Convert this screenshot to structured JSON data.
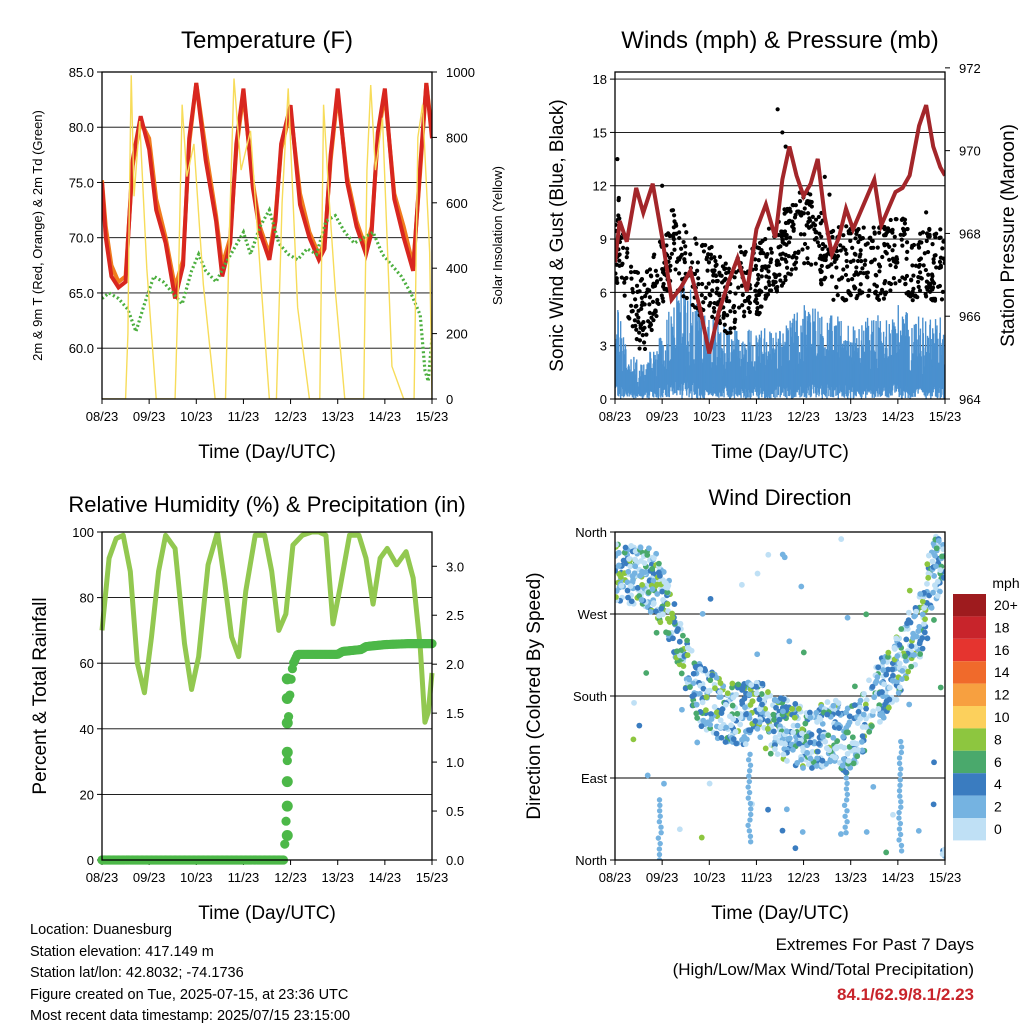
{
  "colors": {
    "temp2m": "#d8261f",
    "temp9m": "#f07c1e",
    "dewpoint": "#4caf3f",
    "solar": "#f7dc5a",
    "sonic": "#4a90cf",
    "gust": "#000000",
    "pressure": "#a3262a",
    "rh": "#92c850",
    "rain": "#4cb848",
    "extremes_text": "#c8242b"
  },
  "chart_data": [
    {
      "id": "temperature",
      "type": "line",
      "title": "Temperature (F)",
      "xlabel": "Time (Day/UTC)",
      "ylabel": "2m & 9m T (Red, Orange) & 2m Td (Green)",
      "ylabel_right": "Solar Insolation (Yellow)",
      "x_ticks": [
        "08/23",
        "09/23",
        "10/23",
        "11/23",
        "12/23",
        "13/23",
        "14/23",
        "15/23"
      ],
      "xlim": [
        0,
        7
      ],
      "ylim": [
        55.4,
        85.0
      ],
      "y_ticks": [
        60.0,
        65.0,
        70.0,
        75.0,
        80.0,
        85.0
      ],
      "y_tick_labels": [
        "60.0",
        "65.0",
        "70.0",
        "75.0",
        "80.0",
        "85.0"
      ],
      "ylim_right": [
        0,
        1000
      ],
      "y_ticks_right": [
        0,
        200,
        400,
        600,
        800,
        1000
      ],
      "grid": true,
      "series": [
        {
          "key": "temp9m",
          "x": [
            0,
            0.08,
            0.2,
            0.35,
            0.5,
            0.65,
            0.82,
            1.0,
            1.15,
            1.35,
            1.55,
            1.72,
            1.85,
            2.0,
            2.2,
            2.42,
            2.55,
            2.72,
            2.85,
            3.0,
            3.2,
            3.35,
            3.55,
            3.68,
            3.8,
            4.0,
            4.2,
            4.4,
            4.6,
            4.72,
            4.85,
            5.0,
            5.2,
            5.4,
            5.6,
            5.72,
            5.85,
            6.0,
            6.2,
            6.4,
            6.6,
            6.75,
            6.88,
            7.0
          ],
          "values": [
            75.2,
            71,
            67.5,
            66,
            66.5,
            76.5,
            80.5,
            79,
            73.5,
            70,
            65.5,
            68,
            78.5,
            84,
            78,
            72,
            67.5,
            70,
            78,
            83,
            75,
            71,
            68.5,
            72,
            78,
            81.5,
            74,
            70.5,
            68.5,
            69.5,
            77,
            83,
            75.5,
            71.5,
            69,
            71,
            79,
            83,
            74,
            71,
            67.5,
            76,
            84,
            79.5
          ]
        },
        {
          "key": "temp2m",
          "x": [
            0,
            0.08,
            0.2,
            0.35,
            0.5,
            0.65,
            0.82,
            1.0,
            1.15,
            1.35,
            1.55,
            1.72,
            1.85,
            2.0,
            2.2,
            2.42,
            2.55,
            2.72,
            2.85,
            3.0,
            3.2,
            3.35,
            3.55,
            3.68,
            3.8,
            4.0,
            4.2,
            4.4,
            4.6,
            4.72,
            4.85,
            5.0,
            5.2,
            5.4,
            5.6,
            5.72,
            5.85,
            6.0,
            6.2,
            6.4,
            6.6,
            6.75,
            6.88,
            7.0
          ],
          "values": [
            75,
            70,
            66.5,
            65.5,
            66,
            77,
            81,
            78,
            72.5,
            69.5,
            64.5,
            67.5,
            79,
            84,
            77,
            71.5,
            66.5,
            69.5,
            78.5,
            83.5,
            74.5,
            70.5,
            68,
            71.5,
            78.5,
            82,
            73,
            70,
            68,
            69,
            77.5,
            83.5,
            75,
            71,
            68.5,
            70.5,
            79.5,
            83.5,
            73.5,
            70,
            67,
            76.5,
            84,
            79
          ]
        },
        {
          "key": "dewpoint",
          "x": [
            0,
            0.15,
            0.35,
            0.55,
            0.72,
            0.9,
            1.1,
            1.3,
            1.5,
            1.7,
            1.9,
            2.05,
            2.2,
            2.42,
            2.6,
            2.8,
            3.0,
            3.15,
            3.35,
            3.55,
            3.75,
            3.95,
            4.15,
            4.35,
            4.55,
            4.75,
            4.95,
            5.15,
            5.35,
            5.55,
            5.75,
            5.95,
            6.15,
            6.35,
            6.55,
            6.75,
            6.85,
            6.92,
            7.0
          ],
          "values": [
            64.5,
            65,
            64.5,
            63.5,
            61.5,
            64,
            66.5,
            66,
            65,
            64,
            67,
            68.5,
            67,
            66,
            67.5,
            69,
            70.5,
            68.5,
            71,
            72.5,
            69.5,
            68.5,
            68,
            69,
            68.5,
            71.5,
            72,
            70.5,
            69.5,
            70,
            70.5,
            68.5,
            67.5,
            66.5,
            65,
            63,
            58,
            57,
            61
          ]
        },
        {
          "key": "solar",
          "x": [
            0,
            0.15,
            0.3,
            0.4,
            0.5,
            0.55,
            0.58,
            0.62,
            0.68,
            0.8,
            0.95,
            1.15,
            1.4,
            1.55,
            1.62,
            1.7,
            1.8,
            1.95,
            2.15,
            2.4,
            2.55,
            2.62,
            2.7,
            2.8,
            2.95,
            3.15,
            3.4,
            3.55,
            3.62,
            3.7,
            3.82,
            3.95,
            4.15,
            4.4,
            4.55,
            4.62,
            4.7,
            4.8,
            4.95,
            5.15,
            5.4,
            5.55,
            5.62,
            5.7,
            5.8,
            5.95,
            6.15,
            6.4,
            6.55,
            6.62,
            6.7,
            6.8,
            6.95,
            7.0
          ],
          "values": [
            0,
            0,
            0,
            0,
            0,
            200,
            600,
            990,
            620,
            850,
            400,
            0,
            0,
            0,
            350,
            900,
            680,
            780,
            350,
            0,
            0,
            0,
            500,
            980,
            700,
            820,
            300,
            0,
            0,
            0,
            600,
            950,
            280,
            0,
            0,
            0,
            900,
            650,
            330,
            0,
            0,
            0,
            700,
            960,
            700,
            860,
            100,
            0,
            0,
            0,
            800,
            900,
            450,
            0
          ]
        }
      ]
    },
    {
      "id": "winds",
      "type": "scatter",
      "title": "Winds (mph) & Pressure (mb)",
      "xlabel": "Time (Day/UTC)",
      "ylabel": "Sonic Wind & Gust (Blue, Black)",
      "ylabel_right": "Station Pressure (Maroon)",
      "x_ticks": [
        "08/23",
        "09/23",
        "10/23",
        "11/23",
        "12/23",
        "13/23",
        "14/23",
        "15/23"
      ],
      "xlim": [
        0,
        7
      ],
      "ylim": [
        0,
        18.4
      ],
      "y_ticks": [
        0,
        3,
        6,
        9,
        12,
        15,
        18
      ],
      "ylim_right": [
        964,
        971.9
      ],
      "y_ticks_right": [
        964,
        966,
        968,
        970,
        972
      ],
      "grid": true,
      "sonic_env": {
        "x": [
          0,
          0.1,
          0.3,
          0.6,
          0.9,
          1.2,
          1.5,
          1.8,
          2.1,
          2.4,
          2.7,
          3.0,
          3.3,
          3.6,
          3.9,
          4.2,
          4.5,
          4.8,
          5.1,
          5.4,
          5.7,
          6.0,
          6.3,
          6.6,
          6.9,
          7.0
        ],
        "values": [
          3.5,
          4,
          2,
          1.5,
          2.5,
          4,
          5,
          4,
          3.5,
          3,
          3,
          3,
          3,
          3,
          4,
          4,
          3.5,
          3.5,
          3,
          3.5,
          3.5,
          4,
          3.5,
          3.5,
          3.5,
          3.5
        ]
      },
      "gust_env": {
        "x": [
          0,
          0.1,
          0.3,
          0.6,
          0.9,
          1.2,
          1.5,
          1.8,
          2.1,
          2.4,
          2.7,
          3.0,
          3.3,
          3.6,
          3.9,
          4.2,
          4.5,
          4.8,
          5.1,
          5.4,
          5.7,
          6.0,
          6.3,
          6.6,
          6.9,
          7.0
        ],
        "values": [
          7,
          9,
          5,
          4,
          6,
          8,
          7,
          6,
          6,
          5,
          6,
          6,
          7,
          8,
          9,
          9,
          7,
          7,
          7,
          7,
          7,
          8,
          7,
          7,
          7,
          7
        ]
      },
      "pressure": {
        "x": [
          0,
          0.1,
          0.25,
          0.45,
          0.6,
          0.8,
          1.0,
          1.2,
          1.4,
          1.6,
          1.8,
          2.0,
          2.2,
          2.4,
          2.6,
          2.8,
          3.0,
          3.2,
          3.4,
          3.55,
          3.7,
          3.85,
          4.0,
          4.15,
          4.3,
          4.45,
          4.6,
          4.75,
          4.9,
          5.05,
          5.2,
          5.35,
          5.5,
          5.65,
          5.8,
          5.95,
          6.1,
          6.25,
          6.45,
          6.6,
          6.75,
          6.9,
          7.0
        ],
        "values": [
          967.3,
          968.3,
          967.8,
          969.1,
          968.5,
          969.2,
          967.9,
          966.4,
          966.7,
          967.1,
          966.2,
          965.1,
          966.1,
          966.8,
          967.4,
          966.6,
          968.1,
          968.7,
          967.9,
          969.3,
          970.1,
          969.4,
          968.9,
          969.2,
          969.8,
          968.4,
          967.5,
          967.9,
          968.6,
          968.1,
          968.5,
          968.9,
          969.3,
          968.2,
          968.6,
          969.0,
          969.1,
          969.4,
          970.6,
          971.1,
          970.1,
          969.6,
          969.4
        ]
      }
    },
    {
      "id": "rh_precip",
      "type": "line",
      "title": "Relative Humidity (%) & Precipitation (in)",
      "xlabel": "Time (Day/UTC)",
      "ylabel": "Percent & Total Rainfall",
      "x_ticks": [
        "08/23",
        "09/23",
        "10/23",
        "11/23",
        "12/23",
        "13/23",
        "14/23",
        "15/23"
      ],
      "xlim": [
        0,
        7
      ],
      "ylim": [
        0,
        100
      ],
      "y_ticks": [
        0,
        20,
        40,
        60,
        80,
        100
      ],
      "ylim_right": [
        0,
        3.35
      ],
      "y_ticks_right": [
        0.0,
        0.5,
        1.0,
        1.5,
        2.0,
        2.5,
        3.0
      ],
      "y_tick_labels_right": [
        "0.0",
        "0.5",
        "1.0",
        "1.5",
        "2.0",
        "2.5",
        "3.0"
      ],
      "grid": true,
      "series": [
        {
          "key": "rh",
          "x": [
            0,
            0.15,
            0.3,
            0.45,
            0.6,
            0.75,
            0.9,
            1.05,
            1.2,
            1.35,
            1.55,
            1.75,
            1.9,
            2.05,
            2.25,
            2.45,
            2.6,
            2.75,
            2.9,
            3.05,
            3.25,
            3.45,
            3.6,
            3.75,
            3.9,
            4.05,
            4.25,
            4.45,
            4.6,
            4.75,
            4.9,
            5.05,
            5.25,
            5.45,
            5.6,
            5.75,
            5.9,
            6.05,
            6.25,
            6.45,
            6.6,
            6.75,
            6.85,
            6.92,
            7.0
          ],
          "values": [
            70,
            92,
            98,
            99,
            88,
            60,
            51,
            68,
            88,
            99,
            95,
            66,
            52,
            62,
            90,
            100,
            85,
            68,
            62,
            82,
            99,
            99,
            88,
            70,
            75,
            96,
            99,
            100,
            100,
            99,
            72,
            83,
            99,
            99,
            92,
            78,
            92,
            95,
            90,
            94,
            86,
            65,
            42,
            45,
            57
          ]
        },
        {
          "key": "rain",
          "x": [
            0,
            3.85,
            3.9,
            3.92,
            3.95,
            3.98,
            4.0,
            4.05,
            4.1,
            4.15,
            4.2,
            4.4,
            5.0,
            5.1,
            5.5,
            5.6,
            6.0,
            6.5,
            7.0
          ],
          "values": [
            0,
            0,
            0.3,
            0.8,
            1.4,
            1.65,
            1.8,
            2.0,
            2.05,
            2.1,
            2.1,
            2.1,
            2.1,
            2.13,
            2.15,
            2.18,
            2.2,
            2.21,
            2.21
          ]
        }
      ]
    },
    {
      "id": "wind_direction",
      "type": "scatter",
      "title": "Wind Direction",
      "xlabel": "Time (Day/UTC)",
      "ylabel": "Direction (Colored By Speed)",
      "x_ticks": [
        "08/23",
        "09/23",
        "10/23",
        "11/23",
        "12/23",
        "13/23",
        "14/23",
        "15/23"
      ],
      "xlim": [
        0,
        7
      ],
      "ylim": [
        0,
        360
      ],
      "y_ticks": [
        0,
        90,
        180,
        270,
        360
      ],
      "y_tick_labels": [
        "North",
        "East",
        "South",
        "West",
        "North"
      ],
      "grid": true,
      "trend": {
        "x": [
          0,
          0.3,
          0.6,
          0.9,
          1.1,
          1.3,
          1.5,
          1.7,
          1.9,
          2.1,
          2.3,
          2.5,
          2.7,
          2.9,
          3.1,
          3.3,
          3.5,
          3.7,
          3.9,
          4.1,
          4.3,
          4.5,
          4.7,
          4.9,
          5.1,
          5.3,
          5.5,
          5.7,
          5.9,
          6.1,
          6.3,
          6.5,
          6.7,
          6.9,
          7.0
        ],
        "values": [
          320,
          310,
          315,
          300,
          280,
          250,
          220,
          190,
          175,
          170,
          165,
          160,
          160,
          165,
          160,
          150,
          145,
          140,
          135,
          135,
          135,
          140,
          140,
          130,
          140,
          155,
          175,
          190,
          200,
          230,
          240,
          260,
          310,
          330,
          340
        ]
      },
      "legend": {
        "title": "mph",
        "labels": [
          "20+",
          "18",
          "16",
          "14",
          "12",
          "10",
          "8",
          "6",
          "4",
          "2",
          "0"
        ],
        "colors": [
          "#9e1b1e",
          "#c8242b",
          "#e5342f",
          "#f06a2b",
          "#f7a040",
          "#fcd05c",
          "#8dc63f",
          "#4aa96c",
          "#3a7cc0",
          "#75b3e1",
          "#bfe0f5"
        ]
      }
    }
  ],
  "info": {
    "location": "Location: Duanesburg",
    "elevation": "Station elevation: 417.149 m",
    "latlon": "Station lat/lon: 42.8032; -74.1736",
    "created": "Figure created on Tue, 2025-07-15, at 23:36 UTC",
    "recent": "Most recent data timestamp: 2025/07/15 23:15:00"
  },
  "extremes": {
    "title": "Extremes For Past 7 Days",
    "subtitle": "(High/Low/Max Wind/Total Precipitation)",
    "values": "84.1/62.9/8.1/2.23"
  }
}
